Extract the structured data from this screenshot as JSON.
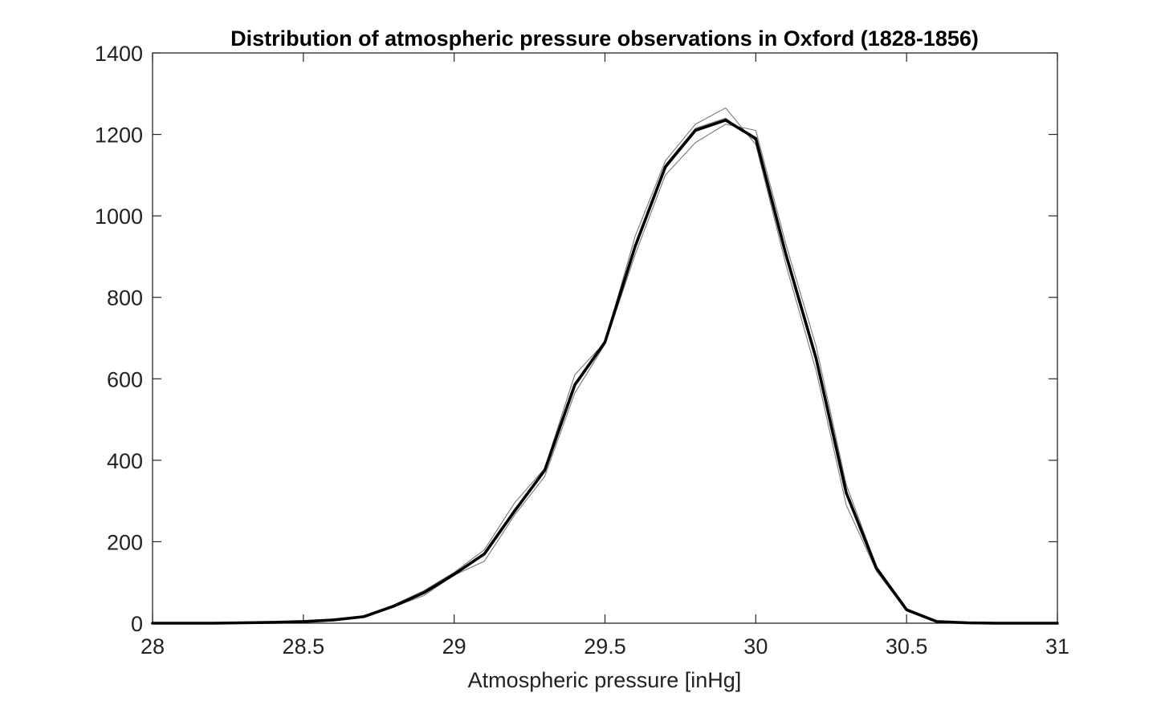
{
  "chart_data": {
    "type": "line",
    "title": "Distribution of atmospheric pressure observations in Oxford (1828-1856)",
    "xlabel": "Atmospheric pressure [inHg]",
    "ylabel": "",
    "xlim": [
      28,
      31
    ],
    "ylim": [
      0,
      1400
    ],
    "xticks": [
      28,
      28.5,
      29,
      29.5,
      30,
      30.5,
      31
    ],
    "xtick_labels": [
      "28",
      "28.5",
      "29",
      "29.5",
      "30",
      "30.5",
      "31"
    ],
    "yticks": [
      0,
      200,
      400,
      600,
      800,
      1000,
      1200,
      1400
    ],
    "ytick_labels": [
      "0",
      "200",
      "400",
      "600",
      "800",
      "1000",
      "1200",
      "1400"
    ],
    "grid": false,
    "legend": "none",
    "x": [
      28.0,
      28.1,
      28.2,
      28.3,
      28.4,
      28.5,
      28.6,
      28.7,
      28.8,
      28.9,
      29.0,
      29.1,
      29.2,
      29.3,
      29.4,
      29.5,
      29.6,
      29.7,
      29.8,
      29.9,
      30.0,
      30.1,
      30.2,
      30.3,
      30.4,
      30.5,
      30.6,
      30.7,
      30.8,
      30.9,
      31.0
    ],
    "series": [
      {
        "color": "#000000",
        "emphasis": "thick",
        "values": [
          0,
          0,
          0,
          1,
          2,
          4,
          8,
          16,
          42,
          75,
          120,
          170,
          275,
          375,
          585,
          690,
          925,
          1120,
          1210,
          1235,
          1190,
          905,
          650,
          320,
          135,
          33,
          4,
          1,
          0,
          0,
          0
        ]
      },
      {
        "color": "#777777",
        "emphasis": "thin",
        "values": [
          0,
          0,
          0,
          1,
          2,
          4,
          9,
          17,
          45,
          80,
          125,
          180,
          295,
          380,
          610,
          690,
          950,
          1135,
          1225,
          1265,
          1175,
          880,
          620,
          290,
          128,
          30,
          3,
          1,
          0,
          0,
          0
        ]
      },
      {
        "color": "#777777",
        "emphasis": "thin",
        "values": [
          0,
          0,
          0,
          1,
          2,
          3,
          7,
          15,
          40,
          68,
          118,
          152,
          265,
          360,
          565,
          685,
          905,
          1100,
          1180,
          1225,
          1210,
          930,
          680,
          340,
          140,
          36,
          5,
          1,
          0,
          0,
          0
        ]
      },
      {
        "color": "#777777",
        "emphasis": "thin",
        "values": [
          0,
          0,
          0,
          1,
          2,
          4,
          8,
          16,
          43,
          76,
          122,
          172,
          280,
          372,
          590,
          688,
          930,
          1125,
          1215,
          1240,
          1185,
          910,
          655,
          325,
          134,
          32,
          4,
          1,
          0,
          0,
          0
        ]
      }
    ]
  }
}
